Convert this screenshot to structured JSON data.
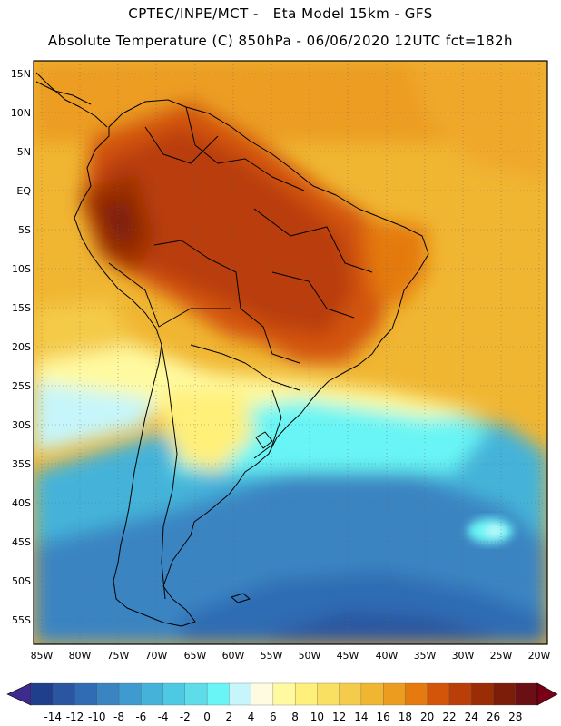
{
  "header": {
    "line1": "CPTEC/INPE/MCT -   Eta Model 15km - GFS",
    "line2": "Absolute Temperature (C) 850hPa - 06/06/2020 12UTC fct=182h"
  },
  "map": {
    "lat_labels": [
      "15N",
      "10N",
      "5N",
      "EQ",
      "5S",
      "10S",
      "15S",
      "20S",
      "25S",
      "30S",
      "35S",
      "40S",
      "45S",
      "50S",
      "55S"
    ],
    "lon_labels": [
      "85W",
      "80W",
      "75W",
      "70W",
      "65W",
      "60W",
      "55W",
      "50W",
      "45W",
      "40W",
      "35W",
      "30W",
      "25W",
      "20W"
    ],
    "lat_range": [
      17,
      -58
    ],
    "lon_range": [
      -86,
      -19
    ],
    "grid": true,
    "graticule_style": "dotted"
  },
  "colorbar": {
    "levels": [
      "-14",
      "-12",
      "-10",
      "-8",
      "-6",
      "-4",
      "-2",
      "0",
      "2",
      "4",
      "6",
      "8",
      "10",
      "12",
      "14",
      "16",
      "18",
      "20",
      "22",
      "24",
      "26",
      "28"
    ],
    "colors": [
      "#1f3f8c",
      "#2a55a0",
      "#2f6cb3",
      "#3a84c2",
      "#3f9bcf",
      "#45b3d9",
      "#4ec9e3",
      "#5fdcea",
      "#69f5f5",
      "#c6f6fb",
      "#fffbe0",
      "#fffaa0",
      "#fff07a",
      "#f9df62",
      "#f4cb4a",
      "#f0b632",
      "#ec9d20",
      "#e47a10",
      "#d3550a",
      "#b93e07",
      "#9a2d06",
      "#7b1d08",
      "#6a1014"
    ],
    "under_color": "#3d2b8f",
    "over_color": "#7a0018"
  }
}
